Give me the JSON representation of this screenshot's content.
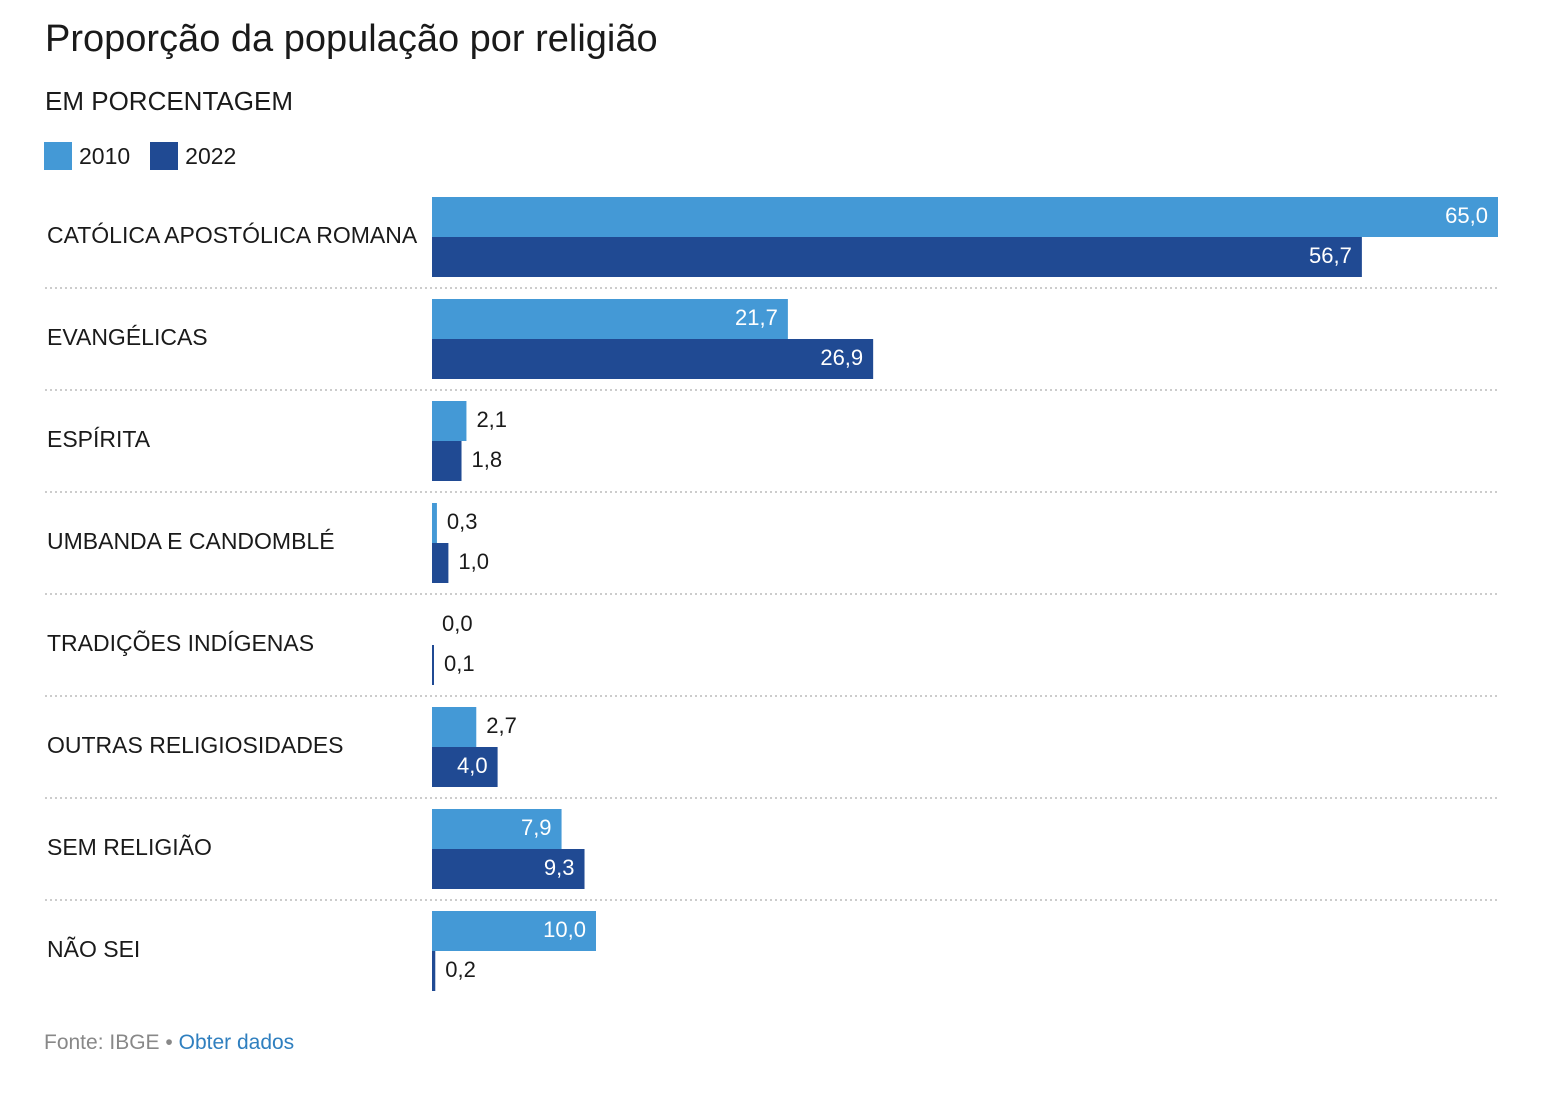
{
  "title": "Proporção da população por religião",
  "subtitle": "EM PORCENTAGEM",
  "colors": {
    "series_2010": "#4499d6",
    "series_2022": "#204a93",
    "gridline": "#cccccc",
    "label_inside": "#ffffff",
    "label_outside": "#1a1a1a"
  },
  "footer": {
    "source": "Fonte: IBGE",
    "separator": "•",
    "link": "Obter dados"
  },
  "chart_data": {
    "type": "bar",
    "orientation": "horizontal",
    "title": "Proporção da população por religião",
    "subtitle": "EM PORCENTAGEM",
    "categories": [
      "CATÓLICA APOSTÓLICA ROMANA",
      "EVANGÉLICAS",
      "ESPÍRITA",
      "UMBANDA E CANDOMBLÉ",
      "TRADIÇÕES INDÍGENAS",
      "OUTRAS RELIGIOSIDADES",
      "SEM RELIGIÃO",
      "NÃO SEI"
    ],
    "series": [
      {
        "name": "2010",
        "values": [
          65.0,
          21.7,
          2.1,
          0.3,
          0.0,
          2.7,
          7.9,
          10.0
        ],
        "labels": [
          "65,0",
          "21,7",
          "2,1",
          "0,3",
          "0,0",
          "2,7",
          "7,9",
          "10,0"
        ]
      },
      {
        "name": "2022",
        "values": [
          56.7,
          26.9,
          1.8,
          1.0,
          0.1,
          4.0,
          9.3,
          0.2
        ],
        "labels": [
          "56,7",
          "26,9",
          "1,8",
          "1,0",
          "0,1",
          "4,0",
          "9,3",
          "0,2"
        ]
      }
    ],
    "xlim": [
      0,
      65
    ],
    "grid": false,
    "legend_position": "top-left"
  }
}
